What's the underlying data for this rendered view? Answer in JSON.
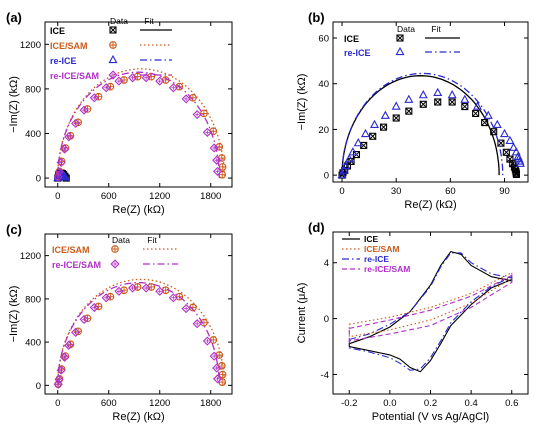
{
  "colors": {
    "ice": "#000000",
    "ice_sam": "#cc5a1a",
    "re_ice": "#2a2ad0",
    "re_ice_sam": "#b030c8"
  },
  "chart_data": [
    {
      "panel": "(a)",
      "type": "scatter",
      "xlabel": "Re(Z) (kΩ)",
      "ylabel": "−Im(Z) (kΩ)",
      "xlim": [
        -150,
        2050
      ],
      "ylim": [
        -80,
        1400
      ],
      "xticks": [
        0,
        600,
        1200,
        1800
      ],
      "yticks": [
        0,
        400,
        800,
        1200
      ],
      "legend": {
        "header_data": "Data",
        "header_fit": "Fit",
        "placement": "top-left"
      },
      "series": [
        {
          "name": "ICE",
          "color": "ice",
          "marker": "boxx",
          "fit": "solid",
          "x": [
            0,
            10,
            25,
            40,
            55,
            70,
            85,
            100
          ],
          "y": [
            0,
            30,
            42,
            45,
            40,
            30,
            15,
            0
          ],
          "fit_semicircle": {
            "x0": 0,
            "x1": 95
          }
        },
        {
          "name": "ICE/SAM",
          "color": "ice_sam",
          "marker": "circleplus",
          "fit": "dotted",
          "x": [
            5,
            20,
            45,
            90,
            150,
            240,
            350,
            480,
            620,
            780,
            940,
            1100,
            1270,
            1430,
            1590,
            1720,
            1830,
            1900,
            1930,
            1940,
            1935
          ],
          "y": [
            10,
            60,
            150,
            270,
            380,
            500,
            620,
            730,
            820,
            880,
            910,
            910,
            880,
            820,
            720,
            580,
            420,
            280,
            180,
            100,
            30
          ],
          "fit_semicircle": {
            "x0": 0,
            "x1": 1960
          }
        },
        {
          "name": "re-ICE",
          "color": "re_ice",
          "marker": "triangle",
          "fit": "dashdot",
          "x": [
            0,
            10,
            20,
            30,
            40,
            50,
            60,
            70,
            80,
            90
          ],
          "y": [
            0,
            20,
            30,
            35,
            36,
            33,
            28,
            20,
            12,
            5
          ],
          "fit_semicircle": {
            "x0": 0,
            "x1": 95
          }
        },
        {
          "name": "re-ICE/SAM",
          "color": "re_ice_sam",
          "marker": "diamondplus",
          "fit": "dashdot",
          "x": [
            5,
            15,
            40,
            80,
            130,
            210,
            310,
            430,
            570,
            720,
            880,
            1040,
            1200,
            1360,
            1510,
            1640,
            1760,
            1840,
            1870,
            1880
          ],
          "y": [
            10,
            55,
            140,
            260,
            370,
            490,
            610,
            720,
            810,
            870,
            900,
            900,
            870,
            810,
            710,
            570,
            410,
            270,
            160,
            60
          ],
          "fit_semicircle": {
            "x0": 0,
            "x1": 1900
          }
        }
      ]
    },
    {
      "panel": "(b)",
      "type": "scatter",
      "xlabel": "Re(Z) (kΩ)",
      "ylabel": "−Im(Z) (kΩ)",
      "xlim": [
        -5,
        103
      ],
      "ylim": [
        -3,
        67
      ],
      "xticks": [
        0,
        30,
        60,
        90
      ],
      "yticks": [
        0,
        20,
        40,
        60
      ],
      "legend": {
        "header_data": "Data",
        "header_fit": "Fit",
        "placement": "top-left"
      },
      "series": [
        {
          "name": "ICE",
          "color": "ice",
          "marker": "boxx",
          "fit": "solid",
          "x": [
            0,
            0.5,
            1.5,
            3,
            5,
            8,
            12,
            17,
            23,
            30,
            37,
            45,
            53,
            61,
            68,
            74,
            79,
            84,
            88,
            91,
            93,
            94.5,
            95.5,
            96,
            96.3,
            96.5,
            96.6
          ],
          "y": [
            0,
            1,
            2,
            4,
            6,
            9,
            13,
            17,
            21,
            25,
            28,
            31,
            32,
            32,
            30,
            27,
            23,
            19,
            14,
            10,
            7,
            5,
            3.5,
            2.5,
            1.5,
            0.8,
            0.3
          ],
          "fit_semicircle": {
            "x0": 0,
            "x1": 87
          }
        },
        {
          "name": "re-ICE",
          "color": "re_ice",
          "marker": "triangle",
          "fit": "dashdot",
          "x": [
            0,
            1,
            2,
            4,
            6,
            9,
            13,
            18,
            24,
            30,
            37,
            45,
            53,
            61,
            68,
            75,
            81,
            86,
            90,
            93,
            95,
            96.5,
            97.5,
            98,
            98.5,
            98.8
          ],
          "y": [
            0,
            2,
            4,
            7,
            10,
            14,
            18,
            22,
            26,
            30,
            33,
            35,
            36,
            35,
            33,
            30,
            26,
            22,
            18,
            15,
            12,
            10,
            8,
            7,
            6,
            5
          ],
          "fit_semicircle": {
            "x0": 0,
            "x1": 89
          }
        }
      ]
    },
    {
      "panel": "(c)",
      "type": "scatter",
      "xlabel": "Re(Z) (kΩ)",
      "ylabel": "−Im(Z) (kΩ)",
      "xlim": [
        -150,
        2050
      ],
      "ylim": [
        -80,
        1400
      ],
      "xticks": [
        0,
        600,
        1200,
        1800
      ],
      "yticks": [
        0,
        400,
        800,
        1200
      ],
      "legend": {
        "header_data": "Data",
        "header_fit": "Fit",
        "placement": "top-left"
      },
      "series": [
        {
          "name": "ICE/SAM",
          "color": "ice_sam",
          "marker": "circleplus",
          "fit": "dotted",
          "x": [
            5,
            20,
            45,
            90,
            150,
            240,
            350,
            480,
            620,
            780,
            940,
            1100,
            1270,
            1430,
            1590,
            1720,
            1830,
            1900,
            1930,
            1940,
            1935
          ],
          "y": [
            10,
            60,
            150,
            270,
            380,
            500,
            620,
            730,
            820,
            880,
            910,
            910,
            880,
            820,
            720,
            580,
            420,
            280,
            180,
            100,
            30
          ],
          "fit_semicircle": {
            "x0": 0,
            "x1": 1960
          }
        },
        {
          "name": "re-ICE/SAM",
          "color": "re_ice_sam",
          "marker": "diamondplus",
          "fit": "dashdot",
          "x": [
            5,
            15,
            40,
            80,
            130,
            210,
            310,
            430,
            570,
            720,
            880,
            1040,
            1200,
            1360,
            1510,
            1640,
            1760,
            1840,
            1870,
            1880
          ],
          "y": [
            10,
            55,
            140,
            260,
            370,
            490,
            610,
            720,
            810,
            870,
            900,
            900,
            870,
            810,
            710,
            570,
            410,
            270,
            160,
            60
          ],
          "fit_semicircle": {
            "x0": 0,
            "x1": 1900
          }
        }
      ]
    },
    {
      "panel": "(d)",
      "type": "line",
      "xlabel": "Potential (V vs Ag/AgCl)",
      "ylabel": "Current (μA)",
      "xlim": [
        -0.28,
        0.68
      ],
      "ylim": [
        -5.4,
        6.2
      ],
      "xticks": [
        -0.2,
        0.0,
        0.2,
        0.4,
        0.6
      ],
      "yticks": [
        -4,
        0,
        4
      ],
      "legend": {
        "placement": "top-left"
      },
      "series": [
        {
          "name": "ICE",
          "color": "ice",
          "dash": "solid",
          "x": [
            -0.2,
            -0.1,
            0,
            0.1,
            0.2,
            0.25,
            0.3,
            0.35,
            0.4,
            0.5,
            0.6,
            0.6,
            0.5,
            0.4,
            0.3,
            0.25,
            0.2,
            0.15,
            0.1,
            0.05,
            0,
            -0.1,
            -0.2
          ],
          "y": [
            -1.8,
            -1.3,
            -0.6,
            0.5,
            2.4,
            3.8,
            4.8,
            4.6,
            3.8,
            3.0,
            2.7,
            2.8,
            2.2,
            1.0,
            -0.5,
            -1.8,
            -3.0,
            -3.8,
            -3.5,
            -2.9,
            -2.6,
            -2.3,
            -2.0
          ]
        },
        {
          "name": "ICE/SAM",
          "color": "ice_sam",
          "dash": "dotted",
          "x": [
            -0.2,
            0,
            0.2,
            0.4,
            0.6,
            0.6,
            0.4,
            0.2,
            0,
            -0.2
          ],
          "y": [
            -0.4,
            0.1,
            0.8,
            1.8,
            3.3,
            2.9,
            1.1,
            -0.1,
            -0.8,
            -1.3
          ]
        },
        {
          "name": "re-ICE",
          "color": "re_ice",
          "dash": "dashdot",
          "x": [
            -0.2,
            -0.1,
            0,
            0.1,
            0.2,
            0.25,
            0.3,
            0.35,
            0.4,
            0.5,
            0.6,
            0.6,
            0.5,
            0.4,
            0.3,
            0.25,
            0.2,
            0.15,
            0.1,
            0.05,
            0,
            -0.1,
            -0.2
          ],
          "y": [
            -1.5,
            -1.1,
            -0.4,
            0.5,
            2.3,
            3.7,
            4.7,
            4.7,
            4.0,
            3.2,
            2.9,
            3.0,
            2.3,
            1.2,
            -0.3,
            -1.6,
            -2.8,
            -3.6,
            -3.7,
            -3.2,
            -2.8,
            -2.4,
            -2.1
          ]
        },
        {
          "name": "re-ICE/SAM",
          "color": "re_ice_sam",
          "dash": "dashed",
          "x": [
            -0.2,
            0,
            0.2,
            0.4,
            0.6,
            0.6,
            0.4,
            0.2,
            0,
            -0.2
          ],
          "y": [
            -0.7,
            -0.1,
            0.6,
            1.6,
            3.1,
            2.6,
            0.8,
            -0.5,
            -1.1,
            -1.6
          ]
        }
      ]
    }
  ]
}
